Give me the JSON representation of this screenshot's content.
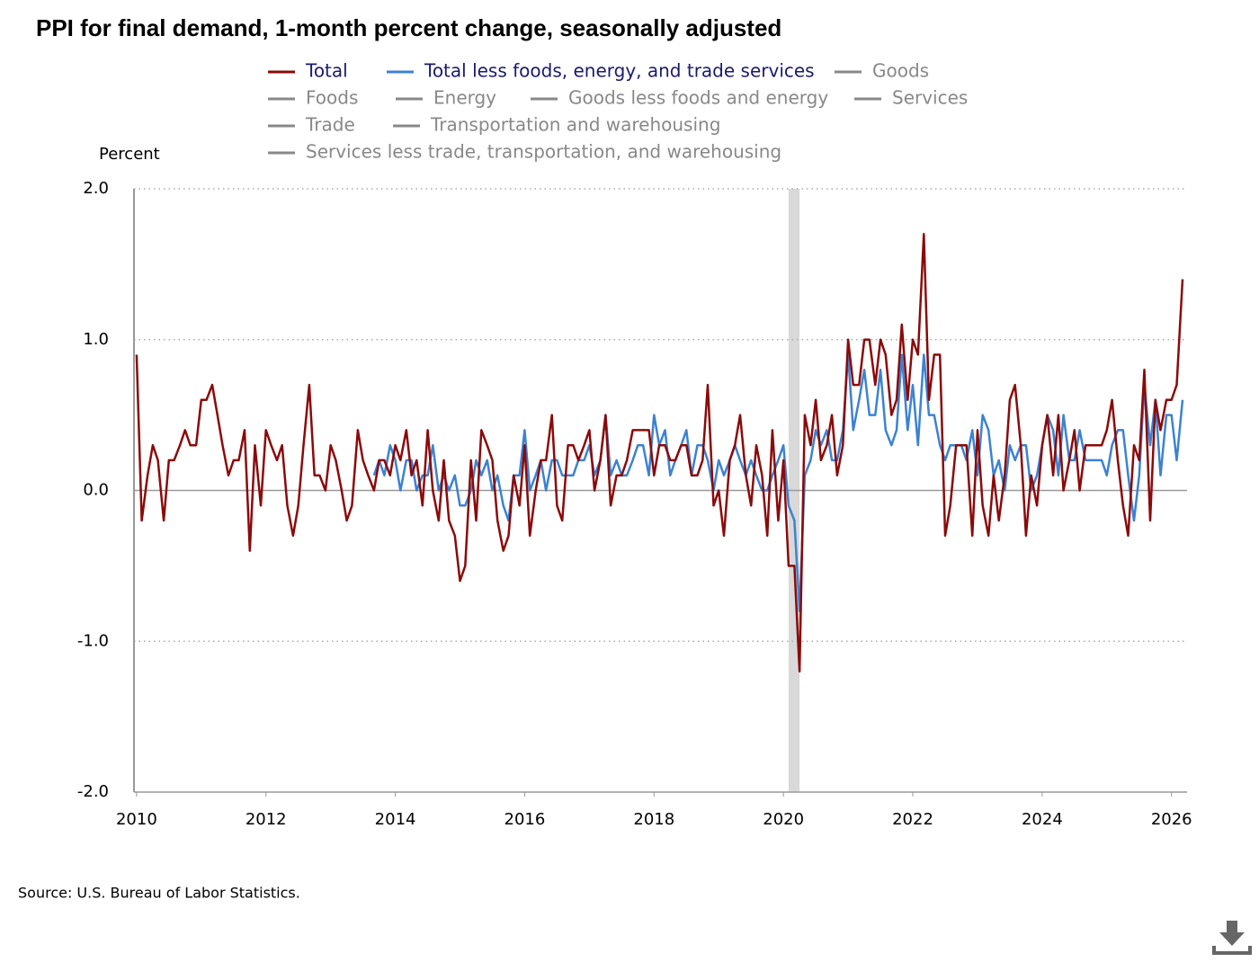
{
  "chart_data": {
    "type": "line",
    "title": "PPI for final demand, 1-month percent change, seasonally adjusted",
    "y_label": "Percent",
    "source": "Source: U.S. Bureau of Labor Statistics.",
    "x": [
      2010.0,
      2010.08,
      2010.17,
      2010.25,
      2010.33,
      2010.42,
      2010.5,
      2010.58,
      2010.67,
      2010.75,
      2010.83,
      2010.92,
      2011.0,
      2011.08,
      2011.17,
      2011.25,
      2011.33,
      2011.42,
      2011.5,
      2011.58,
      2011.67,
      2011.75,
      2011.83,
      2011.92,
      2012.0,
      2012.08,
      2012.17,
      2012.25,
      2012.33,
      2012.42,
      2012.5,
      2012.58,
      2012.67,
      2012.75,
      2012.83,
      2012.92,
      2013.0,
      2013.08,
      2013.17,
      2013.25,
      2013.33,
      2013.42,
      2013.5,
      2013.58,
      2013.67,
      2013.75,
      2013.83,
      2013.92,
      2014.0,
      2014.08,
      2014.17,
      2014.25,
      2014.33,
      2014.42,
      2014.5,
      2014.58,
      2014.67,
      2014.75,
      2014.83,
      2014.92,
      2015.0,
      2015.08,
      2015.17,
      2015.25,
      2015.33,
      2015.42,
      2015.5,
      2015.58,
      2015.67,
      2015.75,
      2015.83,
      2015.92,
      2016.0,
      2016.08,
      2016.17,
      2016.25,
      2016.33,
      2016.42,
      2016.5,
      2016.58,
      2016.67,
      2016.75,
      2016.83,
      2016.92,
      2017.0,
      2017.08,
      2017.17,
      2017.25,
      2017.33,
      2017.42,
      2017.5,
      2017.58,
      2017.67,
      2017.75,
      2017.83,
      2017.92,
      2018.0,
      2018.08,
      2018.17,
      2018.25,
      2018.33,
      2018.42,
      2018.5,
      2018.58,
      2018.67,
      2018.75,
      2018.83,
      2018.92,
      2019.0,
      2019.08,
      2019.17,
      2019.25,
      2019.33,
      2019.42,
      2019.5,
      2019.58,
      2019.67,
      2019.75,
      2019.83,
      2019.92,
      2020.0,
      2020.08,
      2020.17,
      2020.25,
      2020.33,
      2020.42,
      2020.5,
      2020.58,
      2020.67,
      2020.75,
      2020.83,
      2020.92,
      2021.0,
      2021.08,
      2021.17,
      2021.25,
      2021.33,
      2021.42,
      2021.5,
      2021.58,
      2021.67,
      2021.75,
      2021.83,
      2021.92,
      2022.0,
      2022.08,
      2022.17,
      2022.25,
      2022.33,
      2022.42,
      2022.5,
      2022.58,
      2022.67,
      2022.75,
      2022.83,
      2022.92,
      2023.0,
      2023.08,
      2023.17,
      2023.25,
      2023.33,
      2023.42,
      2023.5,
      2023.58,
      2023.67,
      2023.75,
      2023.83,
      2023.92,
      2024.0,
      2024.08,
      2024.17,
      2024.25,
      2024.33,
      2024.42,
      2024.5,
      2024.58,
      2024.67,
      2024.75,
      2024.83,
      2024.92,
      2025.0,
      2025.08,
      2025.17,
      2025.25,
      2025.33,
      2025.42,
      2025.5,
      2025.58,
      2025.67,
      2025.75,
      2025.83,
      2025.92,
      2026.0,
      2026.08,
      2026.17
    ],
    "series": [
      {
        "name": "Total",
        "color": "#8b0a0a",
        "values": [
          0.9,
          -0.2,
          0.1,
          0.3,
          0.2,
          -0.2,
          0.2,
          0.2,
          0.3,
          0.4,
          0.3,
          0.3,
          0.6,
          0.6,
          0.7,
          0.5,
          0.3,
          0.1,
          0.2,
          0.2,
          0.4,
          -0.4,
          0.3,
          -0.1,
          0.4,
          0.3,
          0.2,
          0.3,
          -0.1,
          -0.3,
          -0.1,
          0.3,
          0.7,
          0.1,
          0.1,
          0.0,
          0.3,
          0.2,
          0.0,
          -0.2,
          -0.1,
          0.4,
          0.2,
          0.1,
          0.0,
          0.2,
          0.2,
          0.1,
          0.3,
          0.2,
          0.4,
          0.1,
          0.2,
          -0.1,
          0.4,
          0.0,
          -0.2,
          0.2,
          -0.2,
          -0.3,
          -0.6,
          -0.5,
          0.2,
          -0.2,
          0.4,
          0.3,
          0.2,
          -0.2,
          -0.4,
          -0.3,
          0.1,
          -0.1,
          0.3,
          -0.3,
          0.0,
          0.2,
          0.2,
          0.5,
          -0.1,
          -0.2,
          0.3,
          0.3,
          0.2,
          0.3,
          0.4,
          0.0,
          0.2,
          0.5,
          -0.1,
          0.1,
          0.1,
          0.2,
          0.4,
          0.4,
          0.4,
          0.4,
          0.1,
          0.3,
          0.3,
          0.2,
          0.2,
          0.3,
          0.3,
          0.1,
          0.1,
          0.2,
          0.7,
          -0.1,
          0.0,
          -0.3,
          0.2,
          0.3,
          0.5,
          0.1,
          -0.1,
          0.3,
          0.1,
          -0.3,
          0.4,
          -0.2,
          0.2,
          -0.5,
          -0.5,
          -1.2,
          0.5,
          0.3,
          0.6,
          0.2,
          0.3,
          0.5,
          0.1,
          0.3,
          1.0,
          0.7,
          0.7,
          1.0,
          1.0,
          0.7,
          1.0,
          0.9,
          0.5,
          0.6,
          1.1,
          0.6,
          1.0,
          0.9,
          1.7,
          0.6,
          0.9,
          0.9,
          -0.3,
          -0.1,
          0.3,
          0.3,
          0.3,
          -0.3,
          0.4,
          -0.1,
          -0.3,
          0.1,
          -0.2,
          0.1,
          0.6,
          0.7,
          0.3,
          -0.3,
          0.1,
          -0.1,
          0.3,
          0.5,
          0.1,
          0.5,
          0.0,
          0.2,
          0.4,
          0.0,
          0.3,
          0.3,
          0.3,
          0.3,
          0.4,
          0.6,
          0.2,
          -0.1,
          -0.3,
          0.3,
          0.2,
          0.8,
          -0.2,
          0.6,
          0.4,
          0.6,
          0.6,
          0.7,
          1.4
        ]
      },
      {
        "name": "Total less foods, energy, and trade services",
        "color": "#3c82d2",
        "values": [
          null,
          null,
          null,
          null,
          null,
          null,
          null,
          null,
          null,
          null,
          null,
          null,
          null,
          null,
          null,
          null,
          null,
          null,
          null,
          null,
          null,
          null,
          null,
          null,
          null,
          null,
          null,
          null,
          null,
          null,
          null,
          null,
          null,
          null,
          null,
          null,
          null,
          null,
          null,
          null,
          null,
          null,
          null,
          null,
          0.1,
          0.2,
          0.1,
          0.3,
          0.2,
          0.0,
          0.2,
          0.2,
          0.0,
          0.1,
          0.1,
          0.3,
          0.0,
          0.1,
          0.0,
          0.1,
          -0.1,
          -0.1,
          0.0,
          0.2,
          0.1,
          0.2,
          0.0,
          0.1,
          -0.1,
          -0.2,
          0.1,
          0.1,
          0.4,
          0.0,
          0.1,
          0.2,
          0.0,
          0.2,
          0.2,
          0.1,
          0.1,
          0.1,
          0.2,
          0.2,
          0.3,
          0.1,
          0.2,
          0.5,
          0.1,
          0.2,
          0.1,
          0.1,
          0.2,
          0.3,
          0.3,
          0.1,
          0.5,
          0.3,
          0.4,
          0.1,
          0.2,
          0.3,
          0.4,
          0.1,
          0.3,
          0.3,
          0.2,
          0.0,
          0.2,
          0.1,
          0.2,
          0.3,
          0.2,
          0.1,
          0.2,
          0.1,
          0.0,
          0.0,
          0.1,
          0.2,
          0.3,
          -0.1,
          -0.2,
          -0.8,
          0.1,
          0.2,
          0.4,
          0.3,
          0.4,
          0.2,
          0.2,
          0.4,
          0.9,
          0.4,
          0.6,
          0.8,
          0.5,
          0.5,
          0.8,
          0.4,
          0.3,
          0.4,
          0.9,
          0.4,
          0.7,
          0.3,
          0.9,
          0.5,
          0.5,
          0.3,
          0.2,
          0.3,
          0.3,
          0.3,
          0.2,
          0.4,
          0.1,
          0.5,
          0.4,
          0.1,
          0.2,
          0.0,
          0.3,
          0.2,
          0.3,
          0.3,
          0.0,
          0.1,
          0.3,
          0.5,
          0.4,
          0.1,
          0.5,
          0.2,
          0.2,
          0.4,
          0.2,
          0.2,
          0.2,
          0.2,
          0.1,
          0.3,
          0.4,
          0.4,
          0.1,
          -0.2,
          0.1,
          0.7,
          0.3,
          0.6,
          0.1,
          0.5,
          0.5,
          0.2,
          0.6
        ]
      }
    ],
    "inactive_series": [
      {
        "name": "Goods",
        "color": "#888888"
      },
      {
        "name": "Foods",
        "color": "#888888"
      },
      {
        "name": "Energy",
        "color": "#888888"
      },
      {
        "name": "Goods less foods and energy",
        "color": "#888888"
      },
      {
        "name": "Services",
        "color": "#888888"
      },
      {
        "name": "Trade",
        "color": "#888888"
      },
      {
        "name": "Transportation and warehousing",
        "color": "#888888"
      },
      {
        "name": "Services less trade, transportation, and warehousing",
        "color": "#888888"
      }
    ],
    "bands": [
      {
        "start": 2020.08,
        "end": 2020.25,
        "color": "#d9d9d9"
      }
    ],
    "xlim": [
      2009.96,
      2026.24
    ],
    "xticks": [
      2010,
      2012,
      2014,
      2016,
      2018,
      2020,
      2022,
      2024,
      2026
    ],
    "ylim": [
      -2,
      2
    ],
    "yticks": [
      {
        "value": -2,
        "label": "-2.0"
      },
      {
        "value": -1,
        "label": "-1.0"
      },
      {
        "value": 0,
        "label": "0.0"
      },
      {
        "value": 1,
        "label": "1.0"
      },
      {
        "value": 2,
        "label": "2.0"
      }
    ],
    "grid": true
  }
}
